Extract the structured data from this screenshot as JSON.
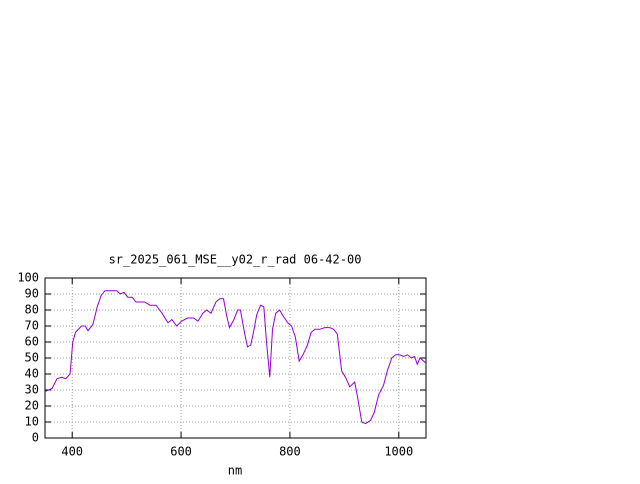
{
  "chart_data": {
    "type": "line",
    "title": "sr_2025_061_MSE__y02_r_rad 06-42-00",
    "xlabel": "nm",
    "x": [
      350,
      363,
      372,
      381,
      388,
      396,
      401,
      406,
      417,
      424,
      429,
      438,
      446,
      453,
      460,
      469,
      482,
      488,
      495,
      502,
      510,
      517,
      533,
      543,
      554,
      565,
      576,
      583,
      592,
      601,
      612,
      623,
      631,
      640,
      647,
      655,
      664,
      671,
      678,
      684,
      689,
      697,
      704,
      709,
      717,
      722,
      728,
      733,
      739,
      746,
      752,
      757,
      763,
      768,
      774,
      781,
      788,
      796,
      803,
      810,
      817,
      824,
      832,
      839,
      846,
      855,
      864,
      873,
      880,
      887,
      895,
      902,
      910,
      919,
      924,
      932,
      939,
      948,
      955,
      963,
      972,
      979,
      987,
      994,
      1001,
      1009,
      1016,
      1023,
      1029,
      1034,
      1039,
      1049
    ],
    "series": [
      {
        "color": "#9400d3",
        "values": [
          29,
          31,
          37,
          38,
          37,
          40,
          60,
          66,
          70,
          70,
          67,
          71,
          82,
          89,
          92,
          92,
          92,
          90,
          91,
          88,
          88,
          85,
          85,
          83,
          83,
          78,
          72,
          74,
          70,
          73,
          75,
          75,
          73,
          78,
          80,
          78,
          85,
          87,
          87,
          76,
          69,
          74,
          80,
          80,
          65,
          57,
          58,
          66,
          77,
          83,
          82,
          60,
          38,
          68,
          78,
          80,
          76,
          72,
          70,
          63,
          48,
          52,
          58,
          66,
          68,
          68,
          69,
          69,
          68,
          65,
          42,
          38,
          32,
          35,
          26,
          10,
          9,
          11,
          16,
          27,
          33,
          42,
          50,
          52,
          52,
          51,
          52,
          50,
          51,
          46,
          50,
          47
        ]
      }
    ],
    "xlim": [
      350,
      1050
    ],
    "xticks": [
      400,
      600,
      800,
      1000
    ],
    "ylim": [
      0,
      100
    ],
    "yticks": [
      0,
      10,
      20,
      30,
      40,
      50,
      60,
      70,
      80,
      90,
      100
    ],
    "grid": true
  }
}
